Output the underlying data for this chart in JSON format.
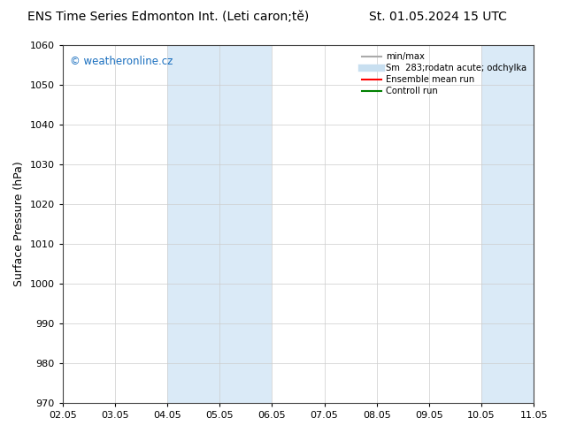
{
  "title_left": "ENS Time Series Edmonton Int. (Leti caron;tě)",
  "title_right": "St. 01.05.2024 15 UTC",
  "ylabel": "Surface Pressure (hPa)",
  "ylim": [
    970,
    1060
  ],
  "yticks": [
    970,
    980,
    990,
    1000,
    1010,
    1020,
    1030,
    1040,
    1050,
    1060
  ],
  "xtick_labels": [
    "02.05",
    "03.05",
    "04.05",
    "05.05",
    "06.05",
    "07.05",
    "08.05",
    "09.05",
    "10.05",
    "11.05"
  ],
  "x_positions": [
    0,
    1,
    2,
    3,
    4,
    5,
    6,
    7,
    8,
    9
  ],
  "xlim": [
    0,
    9
  ],
  "shaded_regions": [
    {
      "x_start": 2.0,
      "x_end": 4.0,
      "color": "#daeaf7"
    },
    {
      "x_start": 8.0,
      "x_end": 9.0,
      "color": "#daeaf7"
    }
  ],
  "watermark_text": "© weatheronline.cz",
  "watermark_color": "#1a6fbf",
  "legend_entries": [
    {
      "label": "min/max",
      "color": "#aaaaaa",
      "lw": 1.5,
      "style": "solid"
    },
    {
      "label": "Sm  283;rodatn acute; odchylka",
      "color": "#c8dff0",
      "lw": 6,
      "style": "solid"
    },
    {
      "label": "Ensemble mean run",
      "color": "red",
      "lw": 1.5,
      "style": "solid"
    },
    {
      "label": "Controll run",
      "color": "green",
      "lw": 1.5,
      "style": "solid"
    }
  ],
  "bg_color": "#ffffff",
  "plot_bg_color": "#ffffff",
  "grid_color": "#cccccc",
  "title_fontsize": 10,
  "label_fontsize": 9,
  "tick_fontsize": 8
}
